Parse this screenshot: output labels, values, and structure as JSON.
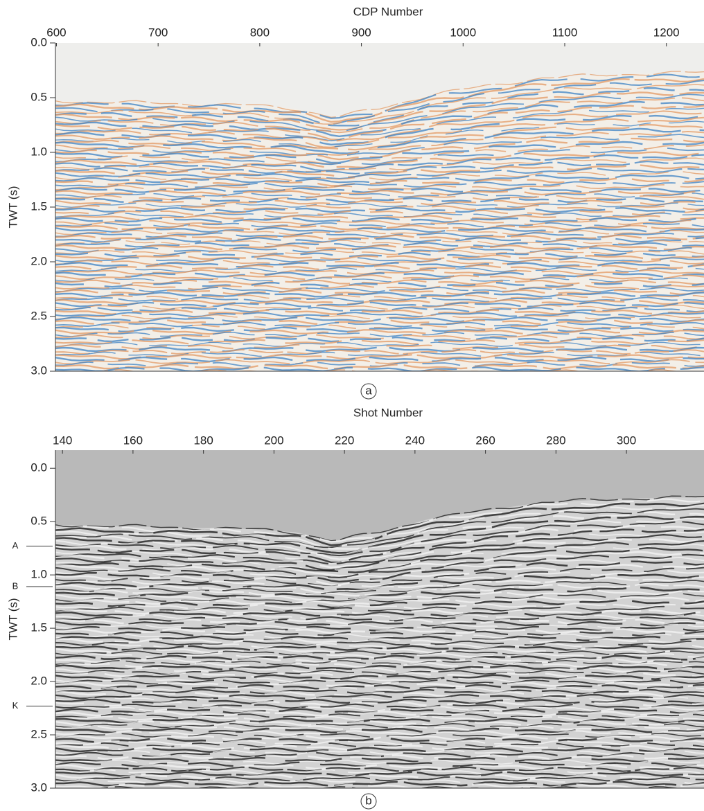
{
  "chart_data": [
    {
      "type": "seismic",
      "xlabel": "CDP Number",
      "ylabel": "TWT (s)",
      "panel_label": "a",
      "xlim": [
        599,
        1237
      ],
      "ylim": [
        3,
        0
      ],
      "xticks": [
        600,
        700,
        800,
        900,
        1000,
        1100,
        1200
      ],
      "yticks": [
        {
          "value": 0,
          "label": "0.0"
        },
        {
          "value": 0.5,
          "label": "0.5"
        },
        {
          "value": 1,
          "label": "1.0"
        },
        {
          "value": 1.5,
          "label": "1.5"
        },
        {
          "value": 2,
          "label": "2.0"
        },
        {
          "value": 2.5,
          "label": "2.5"
        },
        {
          "value": 3,
          "label": "3.0"
        }
      ],
      "palette": [
        "#e39a64",
        "#3c82c4"
      ]
    },
    {
      "type": "seismic",
      "xlabel": "Shot Number",
      "ylabel": "TWT (s)",
      "panel_label": "b",
      "xlim": [
        138,
        322
      ],
      "ylim": [
        3,
        -0.17
      ],
      "xticks": [
        140,
        160,
        180,
        200,
        220,
        240,
        260,
        280,
        300
      ],
      "yticks": [
        {
          "value": 0,
          "label": "0.0"
        },
        {
          "value": 0.5,
          "label": "0.5"
        },
        {
          "value": 1,
          "label": "1.0"
        },
        {
          "value": 1.5,
          "label": "1.5"
        },
        {
          "value": 2,
          "label": "2.0"
        },
        {
          "value": 2.5,
          "label": "2.5"
        },
        {
          "value": 3,
          "label": "3.0"
        }
      ],
      "annotations": [
        {
          "text": "A",
          "y": 0.73
        },
        {
          "text": "B",
          "y": 1.11
        },
        {
          "text": "K",
          "y": 2.23
        }
      ],
      "palette": [
        "#111111",
        "#f4f4f4"
      ]
    }
  ]
}
